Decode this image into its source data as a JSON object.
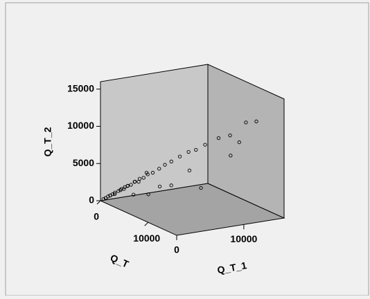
{
  "chart_data": {
    "type": "scatter3d",
    "x_label": "Q_T",
    "y_label": "Q_T_1",
    "z_label": "Q_T_2",
    "xlim": [
      0,
      16000
    ],
    "ylim": [
      0,
      16000
    ],
    "zlim": [
      0,
      16000
    ],
    "xticks": [
      0,
      10000
    ],
    "yticks": [
      0,
      10000
    ],
    "zticks": [
      0,
      5000,
      10000,
      15000
    ],
    "x": [
      200,
      400,
      600,
      800,
      1000,
      1200,
      1500,
      1800,
      2000,
      2300,
      2600,
      3000,
      3300,
      3700,
      4000,
      4500,
      5000,
      5500,
      6000,
      6800,
      7500,
      8200,
      9000,
      10000,
      11000,
      12500,
      13000,
      3000,
      5000,
      7000,
      6000,
      9000,
      8000,
      4000,
      2000,
      500,
      900,
      1300,
      1700,
      2100,
      2500,
      2800,
      3500,
      3900
    ],
    "y": [
      300,
      500,
      700,
      900,
      1100,
      1300,
      1600,
      1700,
      2200,
      2400,
      2700,
      3000,
      3500,
      3800,
      4200,
      4600,
      5200,
      5700,
      6300,
      7000,
      7800,
      8400,
      9200,
      10500,
      11500,
      12800,
      14000,
      5000,
      7000,
      10000,
      9000,
      13000,
      15000,
      6000,
      3500,
      400,
      800,
      1200,
      1900,
      2000,
      2300,
      3100,
      3200,
      4100
    ],
    "z": [
      250,
      400,
      650,
      800,
      1000,
      1250,
      1500,
      1700,
      2100,
      2300,
      2500,
      3000,
      3400,
      3600,
      4100,
      4400,
      5000,
      5600,
      6100,
      6900,
      7600,
      8000,
      8800,
      9800,
      10300,
      12300,
      12400,
      1000,
      2500,
      2300,
      4500,
      6800,
      8000,
      2200,
      900,
      450,
      850,
      1100,
      1800,
      1900,
      2400,
      2900,
      3100,
      4300
    ],
    "colors": {
      "back_wall": "#c8c8c8",
      "side_wall": "#b4b4b4",
      "floor": "#a4a4a4",
      "point": "#000000"
    }
  }
}
